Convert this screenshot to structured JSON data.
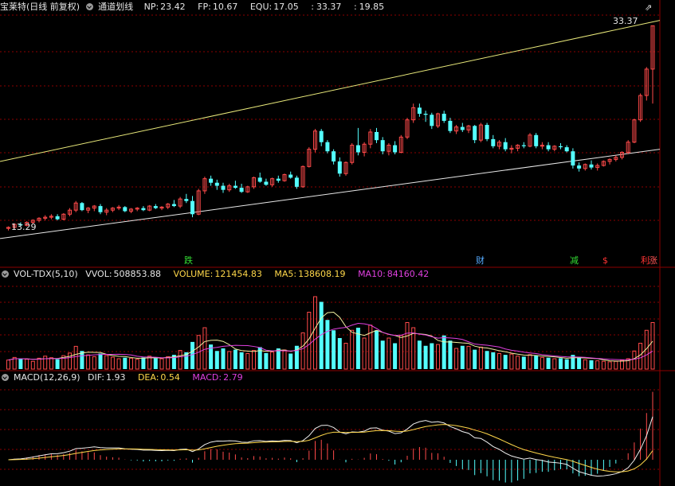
{
  "header": {
    "stock_name": "宝莱特(日线 前复权)",
    "indicator_name": "通道划线",
    "np_label": "NP:",
    "np_value": "23.42",
    "fp_label": "FP:",
    "fp_value": "10.67",
    "equ_label": "EQU:",
    "equ_value": "17.05",
    "sep1": ":",
    "v1": "33.37",
    "sep2": ":",
    "v2": "19.85"
  },
  "price_panel": {
    "high_label": "33.37",
    "low_label": "13.29",
    "signals": [
      {
        "text": "跌",
        "color": "#33dd33"
      },
      {
        "text": "财",
        "color": "#55aaff"
      },
      {
        "text": "减",
        "color": "#33dd33"
      },
      {
        "text": "$",
        "color": "#ff3333"
      },
      {
        "text": "利",
        "color": "#ff3333"
      },
      {
        "text": "涨",
        "color": "#ff5555"
      }
    ]
  },
  "volume_panel": {
    "name": "VOL-TDX(5,10)",
    "vvol_label": "VVOL:",
    "vvol_value": "508853.88",
    "volume_label": "VOLUME:",
    "volume_value": "121454.83",
    "ma5_label": "MA5:",
    "ma5_value": "138608.19",
    "ma10_label": "MA10:",
    "ma10_value": "84160.42"
  },
  "macd_panel": {
    "name": "MACD(12,26,9)",
    "dif_label": "DIF:",
    "dif_value": "1.93",
    "dea_label": "DEA:",
    "dea_value": "0.54",
    "macd_label": "MACD:",
    "macd_value": "2.79"
  },
  "colors": {
    "up": "#ff4a4a",
    "down": "#54ffff",
    "grid": "#8b0000",
    "upper_channel": "#e8e87a",
    "lower_channel": "#e8e8e8",
    "ma5": "#f0f0a0",
    "ma10": "#e040e0",
    "dif": "#f0f0f0",
    "dea": "#ffd84a"
  },
  "chart_data": [
    {
      "type": "candlestick",
      "title": "宝莱特(日线 前复权)",
      "y_range": [
        12.0,
        34.5
      ],
      "candles": [
        [
          13.4,
          13.6,
          13.2,
          13.5
        ],
        [
          13.5,
          13.9,
          13.4,
          13.8
        ],
        [
          13.8,
          14.0,
          13.6,
          13.7
        ],
        [
          13.7,
          14.1,
          13.6,
          14.0
        ],
        [
          14.0,
          14.3,
          13.8,
          14.2
        ],
        [
          14.2,
          14.5,
          14.0,
          14.4
        ],
        [
          14.4,
          14.7,
          14.2,
          14.5
        ],
        [
          14.5,
          14.8,
          14.3,
          14.6
        ],
        [
          14.6,
          14.8,
          14.2,
          14.3
        ],
        [
          14.3,
          14.9,
          14.2,
          14.8
        ],
        [
          14.8,
          15.4,
          14.6,
          15.2
        ],
        [
          15.2,
          16.1,
          15.0,
          15.9
        ],
        [
          15.9,
          16.0,
          15.1,
          15.2
        ],
        [
          15.2,
          15.5,
          14.9,
          15.4
        ],
        [
          15.4,
          15.7,
          15.1,
          15.6
        ],
        [
          15.6,
          15.8,
          14.8,
          15.0
        ],
        [
          15.0,
          15.4,
          14.7,
          15.2
        ],
        [
          15.2,
          15.5,
          15.0,
          15.4
        ],
        [
          15.4,
          15.7,
          15.2,
          15.5
        ],
        [
          15.5,
          15.6,
          15.0,
          15.1
        ],
        [
          15.1,
          15.4,
          14.9,
          15.3
        ],
        [
          15.3,
          15.5,
          15.1,
          15.4
        ],
        [
          15.4,
          15.6,
          15.1,
          15.2
        ],
        [
          15.2,
          15.7,
          15.1,
          15.6
        ],
        [
          15.6,
          15.8,
          15.3,
          15.4
        ],
        [
          15.4,
          15.6,
          15.2,
          15.5
        ],
        [
          15.5,
          15.9,
          15.3,
          15.8
        ],
        [
          15.8,
          16.2,
          15.5,
          15.6
        ],
        [
          15.6,
          16.5,
          15.4,
          16.3
        ],
        [
          16.3,
          16.8,
          15.9,
          16.1
        ],
        [
          16.1,
          16.6,
          14.5,
          14.8
        ],
        [
          14.8,
          17.3,
          14.7,
          17.1
        ],
        [
          17.1,
          18.5,
          16.8,
          18.3
        ],
        [
          18.3,
          18.6,
          17.6,
          17.9
        ],
        [
          17.9,
          18.2,
          17.2,
          17.6
        ],
        [
          17.6,
          17.9,
          16.9,
          17.2
        ],
        [
          17.2,
          17.8,
          17.0,
          17.6
        ],
        [
          17.6,
          18.1,
          17.3,
          17.4
        ],
        [
          17.4,
          17.8,
          16.9,
          17.0
        ],
        [
          17.0,
          17.6,
          16.9,
          17.5
        ],
        [
          17.5,
          18.5,
          17.3,
          18.4
        ],
        [
          18.4,
          18.9,
          17.9,
          18.0
        ],
        [
          18.0,
          18.3,
          17.6,
          17.7
        ],
        [
          17.7,
          18.4,
          17.5,
          18.3
        ],
        [
          18.3,
          18.6,
          17.9,
          18.1
        ],
        [
          18.1,
          18.8,
          18.0,
          18.7
        ],
        [
          18.7,
          19.0,
          18.3,
          18.4
        ],
        [
          18.4,
          18.6,
          17.3,
          17.5
        ],
        [
          17.5,
          19.6,
          17.4,
          19.5
        ],
        [
          19.5,
          21.4,
          19.4,
          21.2
        ],
        [
          21.2,
          23.2,
          20.9,
          23.0
        ],
        [
          23.0,
          23.2,
          21.5,
          21.9
        ],
        [
          21.9,
          22.1,
          20.8,
          21.0
        ],
        [
          21.0,
          21.2,
          19.7,
          20.0
        ],
        [
          20.0,
          20.4,
          18.5,
          18.8
        ],
        [
          18.8,
          20.0,
          18.6,
          19.9
        ],
        [
          19.9,
          21.8,
          19.7,
          21.6
        ],
        [
          21.6,
          23.3,
          20.6,
          20.9
        ],
        [
          20.9,
          21.9,
          20.5,
          21.7
        ],
        [
          21.7,
          23.2,
          21.3,
          22.9
        ],
        [
          22.9,
          23.3,
          21.8,
          22.1
        ],
        [
          22.1,
          22.4,
          20.7,
          21.0
        ],
        [
          21.0,
          21.8,
          20.6,
          21.6
        ],
        [
          21.6,
          22.0,
          20.7,
          20.9
        ],
        [
          20.9,
          22.6,
          20.8,
          22.4
        ],
        [
          22.4,
          24.3,
          22.2,
          24.1
        ],
        [
          24.1,
          25.7,
          23.8,
          25.3
        ],
        [
          25.3,
          25.7,
          24.4,
          24.7
        ],
        [
          24.7,
          25.0,
          23.9,
          24.6
        ],
        [
          24.6,
          24.8,
          23.2,
          23.5
        ],
        [
          23.5,
          24.8,
          23.3,
          24.7
        ],
        [
          24.7,
          25.0,
          23.8,
          24.0
        ],
        [
          24.0,
          24.3,
          22.8,
          23.0
        ],
        [
          23.0,
          23.6,
          22.7,
          23.4
        ],
        [
          23.4,
          23.8,
          22.9,
          23.1
        ],
        [
          23.1,
          23.6,
          22.8,
          23.5
        ],
        [
          23.5,
          23.6,
          21.8,
          22.1
        ],
        [
          22.1,
          23.8,
          21.9,
          23.6
        ],
        [
          23.6,
          23.8,
          22.0,
          22.2
        ],
        [
          22.2,
          22.6,
          21.3,
          21.5
        ],
        [
          21.5,
          22.1,
          21.2,
          21.9
        ],
        [
          21.9,
          22.3,
          21.0,
          21.2
        ],
        [
          21.2,
          21.6,
          20.8,
          21.3
        ],
        [
          21.3,
          21.7,
          21.0,
          21.6
        ],
        [
          21.6,
          21.9,
          21.3,
          21.5
        ],
        [
          21.5,
          22.8,
          21.4,
          22.6
        ],
        [
          22.6,
          22.8,
          21.3,
          21.5
        ],
        [
          21.5,
          21.9,
          21.2,
          21.6
        ],
        [
          21.6,
          21.9,
          21.0,
          21.2
        ],
        [
          21.2,
          21.6,
          21.0,
          21.5
        ],
        [
          21.5,
          21.8,
          21.2,
          21.4
        ],
        [
          21.4,
          21.6,
          20.9,
          21.0
        ],
        [
          21.0,
          21.3,
          19.3,
          19.6
        ],
        [
          19.6,
          19.9,
          19.0,
          19.3
        ],
        [
          19.3,
          19.8,
          19.1,
          19.7
        ],
        [
          19.7,
          20.1,
          19.2,
          19.4
        ],
        [
          19.4,
          19.8,
          19.1,
          19.6
        ],
        [
          19.6,
          20.1,
          19.5,
          20.0
        ],
        [
          20.0,
          20.3,
          19.7,
          20.2
        ],
        [
          20.2,
          20.6,
          20.0,
          20.4
        ],
        [
          20.4,
          21.0,
          20.2,
          20.9
        ],
        [
          20.9,
          22.1,
          20.7,
          21.9
        ],
        [
          21.9,
          24.2,
          21.8,
          24.1
        ],
        [
          24.1,
          26.7,
          23.9,
          26.5
        ],
        [
          26.5,
          29.3,
          26.0,
          29.1
        ],
        [
          29.1,
          33.4,
          25.7,
          33.37
        ]
      ],
      "volume": [
        0.35,
        0.45,
        0.4,
        0.38,
        0.3,
        0.42,
        0.5,
        0.44,
        0.38,
        0.52,
        0.62,
        0.88,
        0.7,
        0.55,
        0.48,
        0.6,
        0.52,
        0.46,
        0.4,
        0.44,
        0.42,
        0.38,
        0.45,
        0.5,
        0.42,
        0.4,
        0.48,
        0.55,
        0.72,
        0.65,
        1.05,
        1.3,
        1.6,
        0.95,
        0.7,
        0.8,
        0.68,
        0.75,
        0.65,
        0.6,
        0.72,
        0.85,
        0.62,
        0.66,
        0.8,
        0.74,
        0.6,
        0.9,
        1.4,
        2.2,
        2.8,
        2.6,
        1.9,
        1.5,
        1.2,
        1.0,
        1.5,
        1.6,
        1.2,
        1.7,
        1.5,
        1.1,
        1.2,
        1.0,
        1.3,
        1.8,
        1.6,
        1.1,
        0.9,
        1.0,
        0.95,
        1.3,
        1.1,
        0.8,
        0.9,
        0.88,
        0.75,
        0.85,
        0.7,
        0.65,
        0.6,
        0.55,
        0.58,
        0.5,
        0.48,
        0.56,
        0.52,
        0.45,
        0.44,
        0.4,
        0.42,
        0.38,
        0.55,
        0.45,
        0.36,
        0.34,
        0.32,
        0.3,
        0.28,
        0.3,
        0.34,
        0.4,
        0.7,
        1.0,
        1.5,
        1.8
      ]
    }
  ]
}
